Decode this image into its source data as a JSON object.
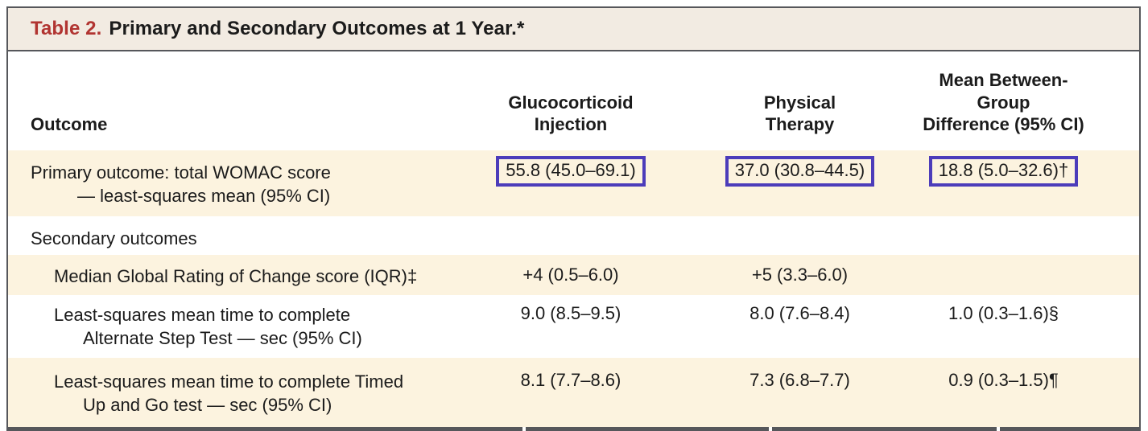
{
  "title": {
    "label": "Table 2.",
    "text": "Primary and Secondary Outcomes at 1 Year.*"
  },
  "columns": {
    "outcome": "Outcome",
    "group1": [
      "Glucocorticoid",
      "Injection"
    ],
    "group2": [
      "Physical",
      "Therapy"
    ],
    "difference": [
      "Mean Between-Group",
      "Difference (95% CI)"
    ]
  },
  "rows": [
    {
      "label": [
        "Primary outcome: total WOMAC score",
        "— least-squares mean (95% CI)"
      ],
      "values": [
        "55.8 (45.0–69.1)",
        "37.0 (30.8–44.5)",
        "18.8 (5.0–32.6)†"
      ],
      "highlighted": true
    },
    {
      "label": [
        "Secondary outcomes"
      ],
      "values": [
        "",
        "",
        ""
      ]
    },
    {
      "label": [
        "Median Global Rating of Change score (IQR)‡"
      ],
      "values": [
        "+4 (0.5–6.0)",
        "+5 (3.3–6.0)",
        ""
      ]
    },
    {
      "label": [
        "Least-squares mean time to complete",
        "Alternate Step Test — sec (95% CI)"
      ],
      "values": [
        "9.0 (8.5–9.5)",
        "8.0 (7.6–8.4)",
        "1.0 (0.3–1.6)§"
      ]
    },
    {
      "label": [
        "Least-squares mean time to complete Timed",
        "Up and Go test — sec (95% CI)"
      ],
      "values": [
        "8.1 (7.7–8.6)",
        "7.3 (6.8–7.7)",
        "0.9 (0.3–1.5)¶"
      ]
    }
  ],
  "colors": {
    "title_accent_red": "#b13431",
    "title_bar_background": "#f2ebe2",
    "row_stripe": "#fcf3df",
    "border_gray": "#56575b",
    "highlight_box_purple": "#4c3cba",
    "text": "#1b1b1b"
  }
}
